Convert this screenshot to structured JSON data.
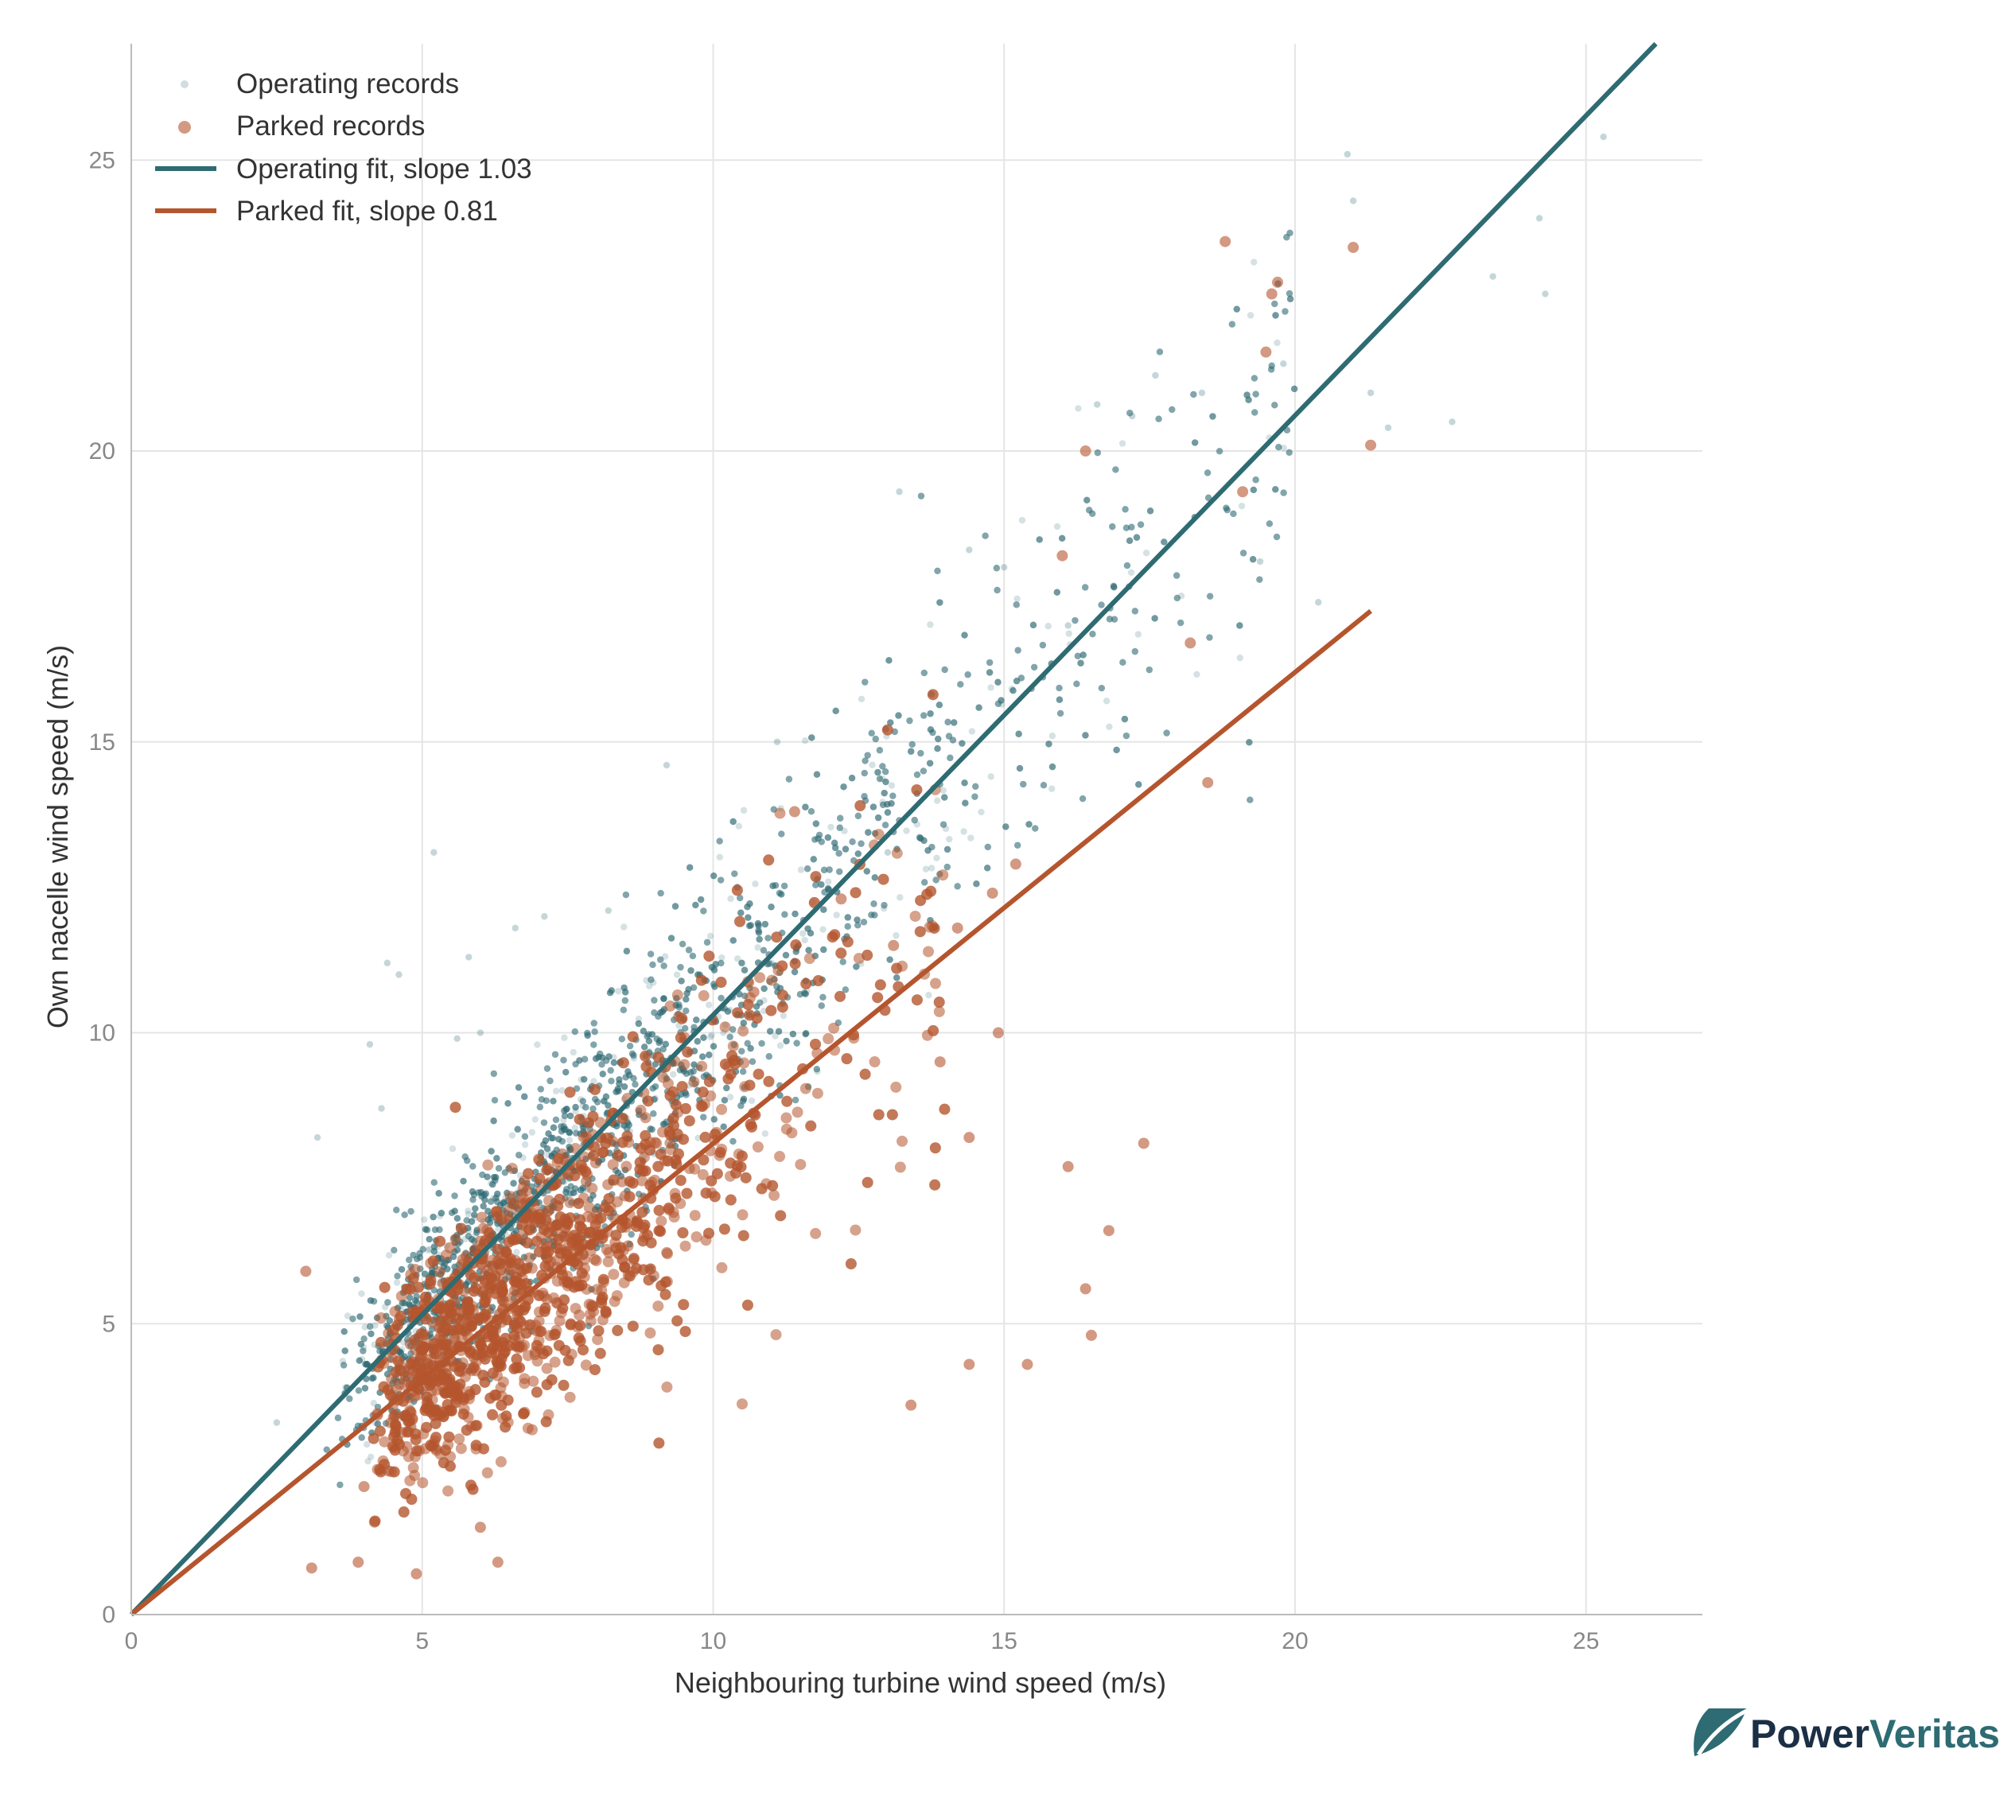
{
  "chart_data": {
    "type": "scatter",
    "title": "",
    "xlabel": "Neighbouring turbine wind speed (m/s)",
    "ylabel": "Own nacelle wind speed (m/s)",
    "xlim": [
      0,
      27
    ],
    "ylim": [
      0,
      27
    ],
    "xticks": [
      "0",
      "5",
      "10",
      "15",
      "20",
      "25"
    ],
    "yticks": [
      "0",
      "5",
      "10",
      "15",
      "20",
      "25"
    ],
    "grid": true,
    "legend_position": "top-left",
    "series": [
      {
        "name": "Operating records",
        "kind": "scatter",
        "color": "#2e6b72",
        "approx_count": 6000,
        "note_shape": "dense cloud along operating fit, x from 2.5 to 25.3 m/s",
        "x": [
          2.5,
          3.2,
          4.1,
          4.4,
          4.6,
          4.3,
          5.2,
          5.6,
          5.8,
          6.6,
          7.1,
          9.2,
          11.1,
          13.2,
          14.4,
          15.0,
          16.6,
          17.2,
          17.6,
          18.4,
          19.8,
          20.9,
          21.0,
          21.3,
          21.6,
          22.7,
          23.4,
          24.2,
          24.3,
          25.3,
          20.4,
          19.4,
          16.1,
          13.0,
          8.2,
          6.0
        ],
        "y": [
          3.3,
          8.2,
          9.8,
          11.2,
          11.0,
          8.7,
          13.1,
          9.9,
          11.3,
          11.8,
          12.0,
          14.6,
          15.0,
          19.3,
          18.3,
          18.0,
          20.8,
          20.6,
          21.3,
          21.0,
          21.5,
          25.1,
          24.3,
          21.0,
          20.4,
          20.5,
          23.0,
          24.0,
          22.7,
          25.4,
          17.4,
          18.1,
          17.0,
          13.1,
          12.1,
          10.0
        ]
      },
      {
        "name": "Parked records",
        "kind": "scatter",
        "color": "#b5552e",
        "approx_count": 1800,
        "note_shape": "cloud below operating cloud, concentrated at low speeds",
        "x": [
          3.0,
          3.1,
          3.9,
          4.0,
          4.9,
          6.0,
          6.3,
          14.4,
          16.4,
          16.8,
          17.4,
          16.1,
          13.4,
          14.4,
          15.4,
          16.5,
          14.9,
          13.9,
          18.5,
          18.8,
          21.0,
          19.7,
          19.6,
          19.5,
          19.1,
          21.3,
          18.2,
          16.4,
          16.0,
          15.2,
          14.8,
          14.2,
          13.1,
          12.2,
          11.4,
          10.7
        ],
        "y": [
          5.9,
          0.8,
          0.9,
          2.2,
          0.7,
          1.5,
          0.9,
          8.2,
          5.6,
          6.6,
          8.1,
          7.7,
          3.6,
          4.3,
          4.3,
          4.8,
          10.0,
          9.5,
          14.3,
          23.6,
          23.5,
          22.9,
          22.7,
          21.7,
          19.3,
          20.1,
          16.7,
          20.0,
          18.2,
          12.9,
          12.4,
          11.8,
          11.5,
          12.3,
          13.8,
          10.7
        ]
      },
      {
        "name": "Operating fit, slope 1.03",
        "kind": "line",
        "color": "#2e6b72",
        "slope": 1.03,
        "x": [
          0,
          26.2
        ],
        "y": [
          0,
          27.0
        ]
      },
      {
        "name": "Parked fit, slope 0.81",
        "kind": "line",
        "color": "#b5552e",
        "slope": 0.81,
        "x": [
          0,
          21.3
        ],
        "y": [
          0,
          17.25
        ]
      }
    ]
  },
  "brand": {
    "power": "Power",
    "veritas": "Veritas",
    "logo_icon": "leaf-logo-icon",
    "color_dark": "#1b2f45",
    "color_accent": "#2e6b72"
  }
}
